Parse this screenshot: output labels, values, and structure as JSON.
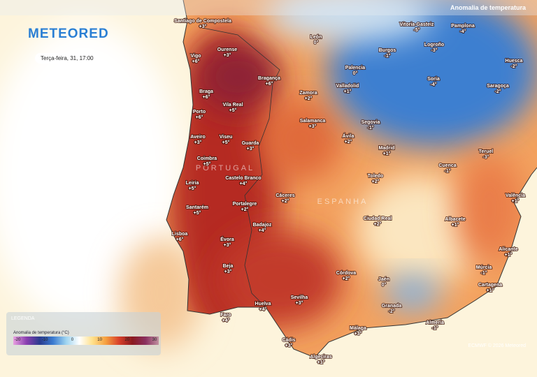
{
  "header": {
    "title": "Anomalia de temperatura"
  },
  "logo": "METEORED",
  "date": "Terça-feira, 31, 17:00",
  "countries": [
    "PORTUGAL",
    "ESPANHA"
  ],
  "cities": [
    {
      "name": "Santiago de Compostela",
      "value": "+3°"
    },
    {
      "name": "Ourense",
      "value": "+3°"
    },
    {
      "name": "Vigo",
      "value": "+6°"
    },
    {
      "name": "Braga",
      "value": "+6°"
    },
    {
      "name": "Bragança",
      "value": "+6°"
    },
    {
      "name": "Vila Real",
      "value": "+5°"
    },
    {
      "name": "Porto",
      "value": "+6°"
    },
    {
      "name": "Aveiro",
      "value": "+3°"
    },
    {
      "name": "Viseu",
      "value": "+5°"
    },
    {
      "name": "Guarda",
      "value": "+3°"
    },
    {
      "name": "Coimbra",
      "value": "+5°"
    },
    {
      "name": "Leiria",
      "value": "+5°"
    },
    {
      "name": "Castelo Branco",
      "value": "+4°"
    },
    {
      "name": "Santarém",
      "value": "+5°"
    },
    {
      "name": "Portalegre",
      "value": "+2°"
    },
    {
      "name": "Lisboa",
      "value": "+6°"
    },
    {
      "name": "Badajoz",
      "value": "+4°"
    },
    {
      "name": "Évora",
      "value": "+3°"
    },
    {
      "name": "Beja",
      "value": "+3°"
    },
    {
      "name": "Faro",
      "value": "+4°"
    },
    {
      "name": "Huelva",
      "value": "+4°"
    },
    {
      "name": "Sevilha",
      "value": "+3°"
    },
    {
      "name": "Cádis",
      "value": "+3°"
    },
    {
      "name": "Algeciras",
      "value": "+1°"
    },
    {
      "name": "León",
      "value": "0°"
    },
    {
      "name": "Palencia",
      "value": "0°"
    },
    {
      "name": "Valladolid",
      "value": "+1°"
    },
    {
      "name": "Zamora",
      "value": "+2°"
    },
    {
      "name": "Salamanca",
      "value": "+3°"
    },
    {
      "name": "Segovia",
      "value": "-1°"
    },
    {
      "name": "Ávila",
      "value": "+2°"
    },
    {
      "name": "Burgos",
      "value": "-1°"
    },
    {
      "name": "Madrid",
      "value": "+1°"
    },
    {
      "name": "Toledo",
      "value": "+2°"
    },
    {
      "name": "Cáceres",
      "value": "+2°"
    },
    {
      "name": "Ciudad Real",
      "value": "+2°"
    },
    {
      "name": "Córdova",
      "value": "+2°"
    },
    {
      "name": "Jaén",
      "value": "0°"
    },
    {
      "name": "Granada",
      "value": "-2°"
    },
    {
      "name": "Málaga",
      "value": "+3°"
    },
    {
      "name": "Almería",
      "value": "-1°"
    },
    {
      "name": "Múrcia",
      "value": "-1°"
    },
    {
      "name": "Cartagena",
      "value": "+1°"
    },
    {
      "name": "Alicante",
      "value": "+1°"
    },
    {
      "name": "Albacete",
      "value": "+1°"
    },
    {
      "name": "Valência",
      "value": "+1°"
    },
    {
      "name": "Cuenca",
      "value": "-1°"
    },
    {
      "name": "Teruel",
      "value": "-3°"
    },
    {
      "name": "Soria",
      "value": "-4°"
    },
    {
      "name": "Logroño",
      "value": "-3°"
    },
    {
      "name": "Vitoria-Gasteiz",
      "value": "-5°"
    },
    {
      "name": "Pamplona",
      "value": "-4°"
    },
    {
      "name": "Huesca",
      "value": "-2°"
    },
    {
      "name": "Saragoça",
      "value": "-2°"
    }
  ],
  "legend": {
    "title": "LEGENDA",
    "subtitle": "Anomalia de temperatura (°C)",
    "ticks": [
      -20,
      -10,
      0,
      10,
      20,
      30
    ]
  },
  "credit": "ECMWF © 2026 Meteored"
}
